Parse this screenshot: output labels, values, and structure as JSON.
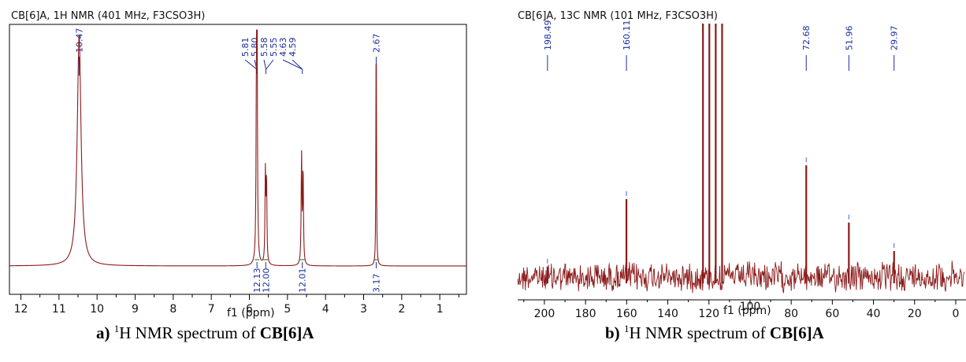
{
  "chart_data": [
    {
      "type": "line",
      "title": "CB[6]A, 1H NMR (401 MHz, F3CSO3H)",
      "xlabel": "f1 (ppm)",
      "xlim": [
        12.3,
        0.3
      ],
      "x_reversed": true,
      "xticks": [
        12,
        11,
        10,
        9,
        8,
        7,
        6,
        5,
        4,
        3,
        2,
        1
      ],
      "xtick_labels": [
        "12",
        "11",
        "10",
        "9",
        "8",
        "7",
        "6",
        "5",
        "4",
        "3",
        "2",
        "1"
      ],
      "line_color": "#8b1a1a",
      "peaks": [
        {
          "ppm": 10.47,
          "height": 1.0,
          "width": 0.06
        },
        {
          "ppm": 5.81,
          "height": 0.91,
          "width": 0.012
        },
        {
          "ppm": 5.8,
          "height": 0.86,
          "width": 0.012
        },
        {
          "ppm": 5.58,
          "height": 0.39,
          "width": 0.012
        },
        {
          "ppm": 5.55,
          "height": 0.36,
          "width": 0.012
        },
        {
          "ppm": 4.63,
          "height": 0.47,
          "width": 0.012
        },
        {
          "ppm": 4.59,
          "height": 0.41,
          "width": 0.012
        },
        {
          "ppm": 2.67,
          "height": 1.12,
          "width": 0.008
        }
      ],
      "peak_labels": [
        "10.47",
        "5.81",
        "5.80",
        "5.58",
        "5.55",
        "4.63",
        "4.59",
        "2.67"
      ],
      "integrals": [
        {
          "ppm": 5.8,
          "label": "12.13"
        },
        {
          "ppm": 5.57,
          "label": "12.00"
        },
        {
          "ppm": 4.61,
          "label": "12.01"
        },
        {
          "ppm": 2.67,
          "label": "3.17"
        }
      ]
    },
    {
      "type": "line",
      "title": "CB[6]A, 13C NMR (101 MHz, F3CSO3H)",
      "xlabel": "f1 (ppm)",
      "xlim": [
        213,
        -5
      ],
      "x_reversed": true,
      "xticks": [
        200,
        180,
        160,
        140,
        120,
        100,
        80,
        60,
        40,
        20,
        0
      ],
      "xtick_labels": [
        "200",
        "180",
        "160",
        "140",
        "120",
        "100",
        "80",
        "60",
        "40",
        "20",
        "0"
      ],
      "line_color": "#8b1a1a",
      "peaks": [
        {
          "ppm": 198.49,
          "height": 0.04
        },
        {
          "ppm": 160.11,
          "height": 0.3
        },
        {
          "ppm": 122.9,
          "height": 1.5
        },
        {
          "ppm": 119.8,
          "height": 1.5
        },
        {
          "ppm": 116.7,
          "height": 1.5
        },
        {
          "ppm": 113.6,
          "height": 1.5
        },
        {
          "ppm": 72.68,
          "height": 0.43
        },
        {
          "ppm": 51.96,
          "height": 0.21
        },
        {
          "ppm": 29.97,
          "height": 0.1
        }
      ],
      "peak_labels": [
        "198.49",
        "160.11",
        "72.68",
        "51.96",
        "29.97"
      ]
    }
  ],
  "captions": [
    {
      "prefix": "a)",
      "sup": "1",
      "text": "H NMR spectrum of",
      "compound": "CB[6]A"
    },
    {
      "prefix": "b)",
      "sup": "1",
      "text": "H NMR spectrum of",
      "compound": "CB[6]A"
    }
  ]
}
